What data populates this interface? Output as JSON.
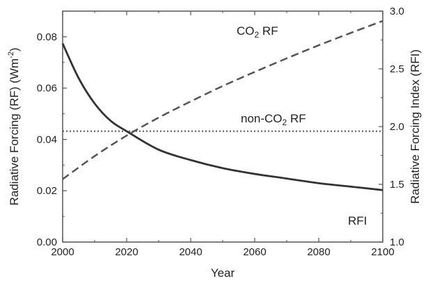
{
  "chart_data": {
    "type": "line",
    "xlabel": "Year",
    "ylabel_left": "Radiative Forcing (RF) (Wm⁻²)",
    "ylabel_right": "Radiative Forcing Index (RFI)",
    "xlim": [
      2000,
      2100
    ],
    "ylim_left": [
      0,
      0.09
    ],
    "ylim_right": [
      1.0,
      3.0
    ],
    "x_ticks": [
      2000,
      2020,
      2040,
      2060,
      2080,
      2100
    ],
    "x_tick_labels": [
      "2000",
      "2020",
      "2040",
      "2060",
      "2080",
      "2100"
    ],
    "y_left_ticks": [
      0.0,
      0.02,
      0.04,
      0.06,
      0.08
    ],
    "y_left_tick_labels": [
      "0.00",
      "0.02",
      "0.04",
      "0.06",
      "0.08"
    ],
    "y_right_ticks": [
      1.0,
      1.5,
      2.0,
      2.5,
      3.0
    ],
    "y_right_tick_labels": [
      "1.0",
      "1.5",
      "2.0",
      "2.5",
      "3.0"
    ],
    "grid": false,
    "series": [
      {
        "name": "CO₂ RF",
        "axis": "left",
        "style": "dashed",
        "color": "#555555",
        "x": [
          2000,
          2010,
          2020,
          2030,
          2040,
          2050,
          2060,
          2070,
          2080,
          2090,
          2100
        ],
        "values": [
          0.0245,
          0.0335,
          0.0415,
          0.0485,
          0.0548,
          0.0608,
          0.0663,
          0.0716,
          0.0767,
          0.0815,
          0.0862
        ]
      },
      {
        "name": "non-CO₂ RF",
        "axis": "left",
        "style": "dotted",
        "color": "#555555",
        "x": [
          2000,
          2100
        ],
        "values": [
          0.0432,
          0.0432
        ]
      },
      {
        "name": "RFI",
        "axis": "right",
        "style": "solid",
        "color": "#333333",
        "x": [
          2000,
          2005,
          2010,
          2015,
          2020,
          2030,
          2040,
          2050,
          2060,
          2070,
          2080,
          2090,
          2100
        ],
        "values": [
          2.72,
          2.42,
          2.2,
          2.05,
          1.96,
          1.8,
          1.71,
          1.64,
          1.59,
          1.55,
          1.51,
          1.48,
          1.45
        ]
      }
    ],
    "annotations": [
      {
        "text_main": "CO",
        "text_sub": "2",
        "text_tail": " RF",
        "series": "CO₂ RF"
      },
      {
        "text_main": "non-CO",
        "text_sub": "2",
        "text_tail": " RF",
        "series": "non-CO₂ RF"
      },
      {
        "text_main": "RFI",
        "text_sub": "",
        "text_tail": "",
        "series": "RFI"
      }
    ],
    "axis_title_left_main": "Radiative Forcing (RF) (Wm",
    "axis_title_left_sup": "-2",
    "axis_title_left_tail": ")"
  }
}
